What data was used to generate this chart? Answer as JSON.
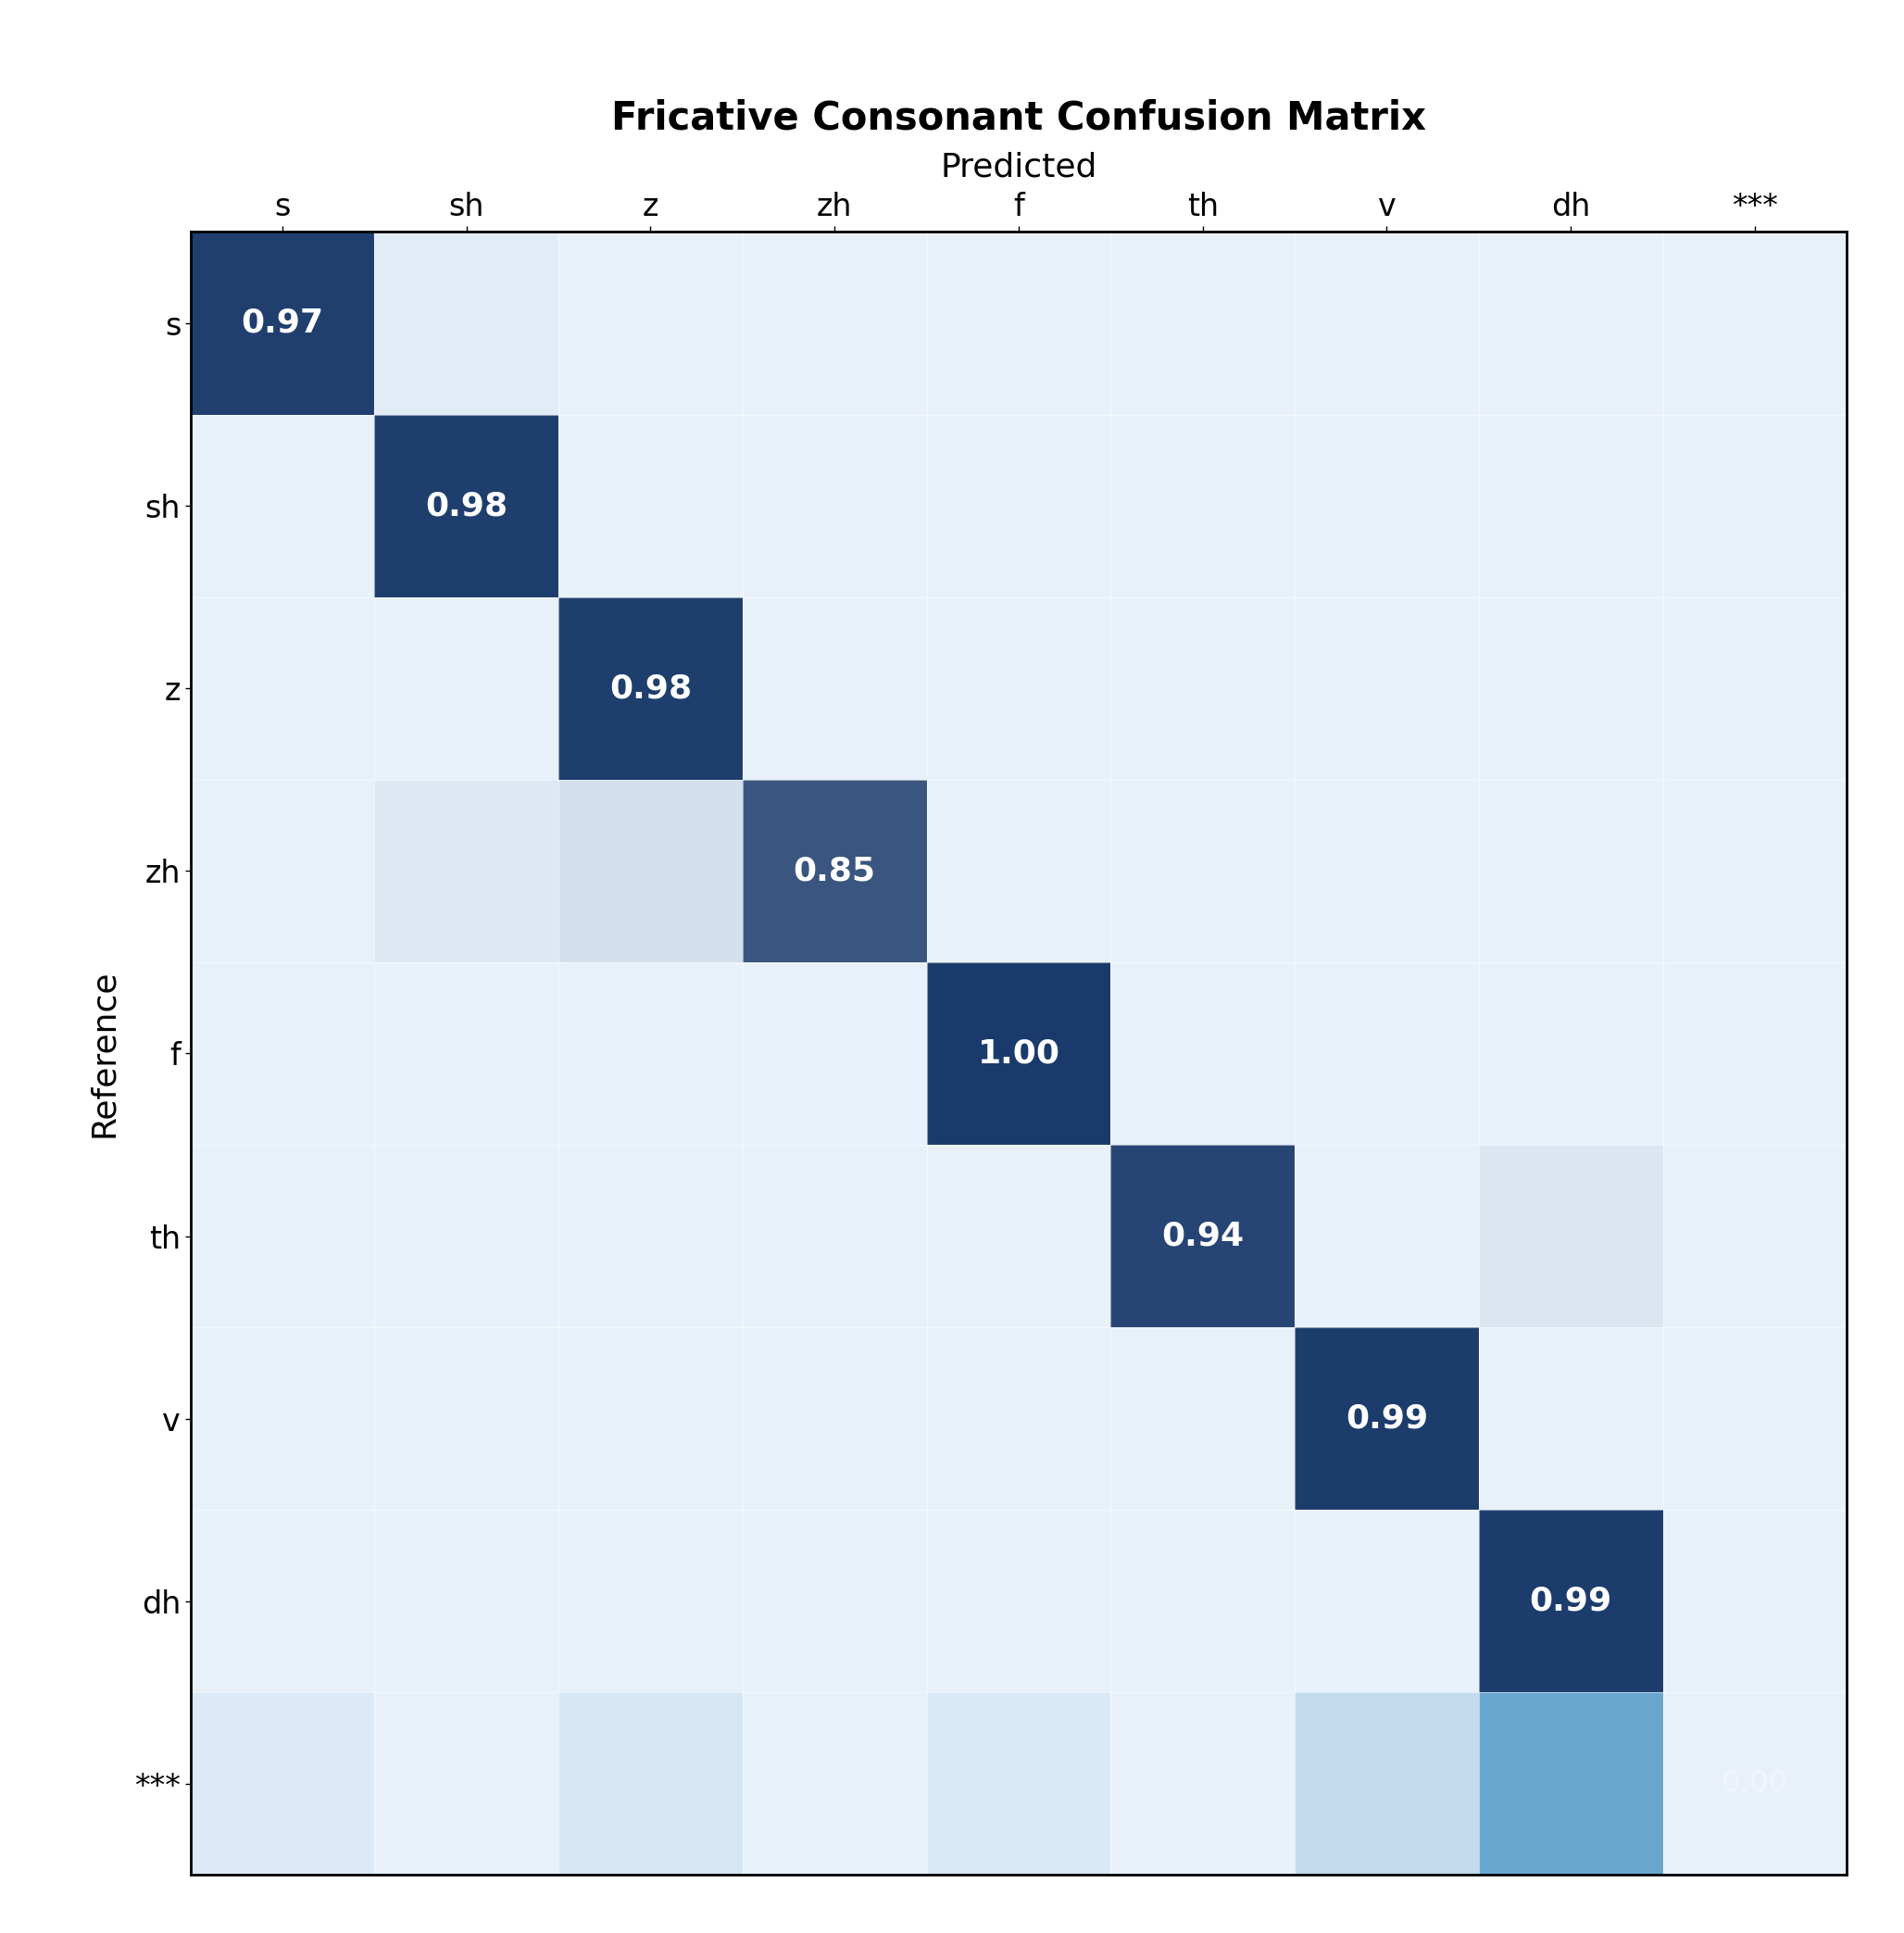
{
  "title": "Fricative Consonant Confusion Matrix",
  "xlabel": "Predicted",
  "ylabel": "Reference",
  "labels": [
    "s",
    "sh",
    "z",
    "zh",
    "f",
    "th",
    "v",
    "dh",
    "***"
  ],
  "matrix": [
    [
      0.97,
      0.03,
      0.0,
      0.0,
      0.0,
      0.0,
      0.0,
      0.0,
      0.0
    ],
    [
      0.0,
      0.98,
      0.0,
      0.0,
      0.0,
      0.0,
      0.0,
      0.0,
      0.0
    ],
    [
      0.0,
      0.0,
      0.98,
      0.0,
      0.0,
      0.0,
      0.0,
      0.0,
      0.0
    ],
    [
      0.0,
      0.05,
      0.1,
      0.85,
      0.0,
      0.0,
      0.0,
      0.0,
      0.0
    ],
    [
      0.0,
      0.0,
      0.0,
      0.0,
      1.0,
      0.0,
      0.0,
      0.0,
      0.0
    ],
    [
      0.0,
      0.0,
      0.0,
      0.0,
      0.0,
      0.94,
      0.0,
      0.06,
      0.0
    ],
    [
      0.0,
      0.0,
      0.0,
      0.0,
      0.0,
      0.0,
      0.99,
      0.0,
      0.0
    ],
    [
      0.0,
      0.0,
      0.0,
      0.0,
      0.0,
      0.0,
      0.0,
      0.99,
      0.0
    ],
    [
      0.05,
      0.0,
      0.07,
      0.0,
      0.06,
      0.0,
      0.15,
      0.5,
      0.0
    ]
  ],
  "annotated_cells": {
    "0,0": "0.97",
    "1,1": "0.98",
    "2,2": "0.98",
    "3,3": "0.85",
    "4,4": "1.00",
    "5,5": "0.94",
    "6,6": "0.99",
    "7,7": "0.99"
  },
  "all_cell_annotations": true,
  "title_fontsize": 30,
  "label_fontsize": 26,
  "tick_fontsize": 24,
  "annot_fontsize": 26,
  "cmap_light": "#E8F1FA",
  "cmap_dark": "#1A3A6B",
  "special_blue": "#5B9EC9",
  "bg_color": "#FFFFFF",
  "fig_width": 20.56,
  "fig_height": 20.87
}
